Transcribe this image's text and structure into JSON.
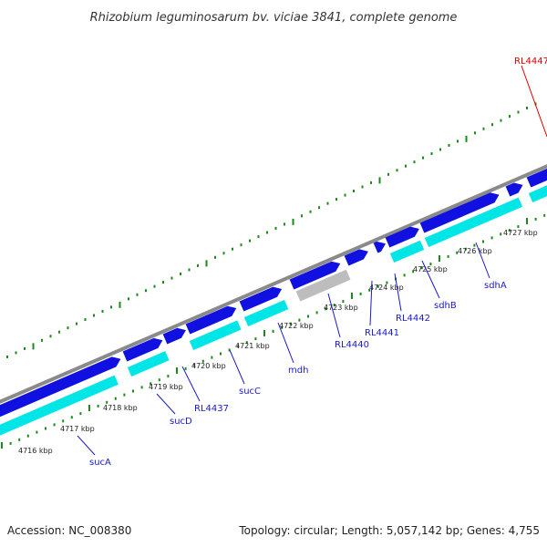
{
  "title": "Rhizobium leguminosarum bv. viciae 3841, complete genome",
  "footer": {
    "accession": "Accession: NC_008380",
    "summary": "Topology: circular; Length: 5,057,142 bp; Genes: 4,755"
  },
  "colors": {
    "backbone": "#8a8a8a",
    "forward_gene": "#1010e0",
    "reverse_gene": "#00e6e6",
    "pseudo_gene": "#bdbdbd",
    "tick": "#1a8a1a",
    "label": "#1a1acc",
    "highlight": "#dd0000"
  },
  "scale": {
    "unit": "kbp",
    "ticks": [
      "4716 kbp",
      "4717 kbp",
      "4718 kbp",
      "4719 kbp",
      "4720 kbp",
      "4721 kbp",
      "4722 kbp",
      "4723 kbp",
      "4724 kbp",
      "4725 kbp",
      "4726 kbp",
      "4727 kbp"
    ]
  },
  "gene_labels": [
    "sucA",
    "sucD",
    "RL4437",
    "sucC",
    "mdh",
    "RL4440",
    "RL4441",
    "RL4442",
    "sdhB",
    "sdhA"
  ],
  "highlight_label": "RL4447"
}
